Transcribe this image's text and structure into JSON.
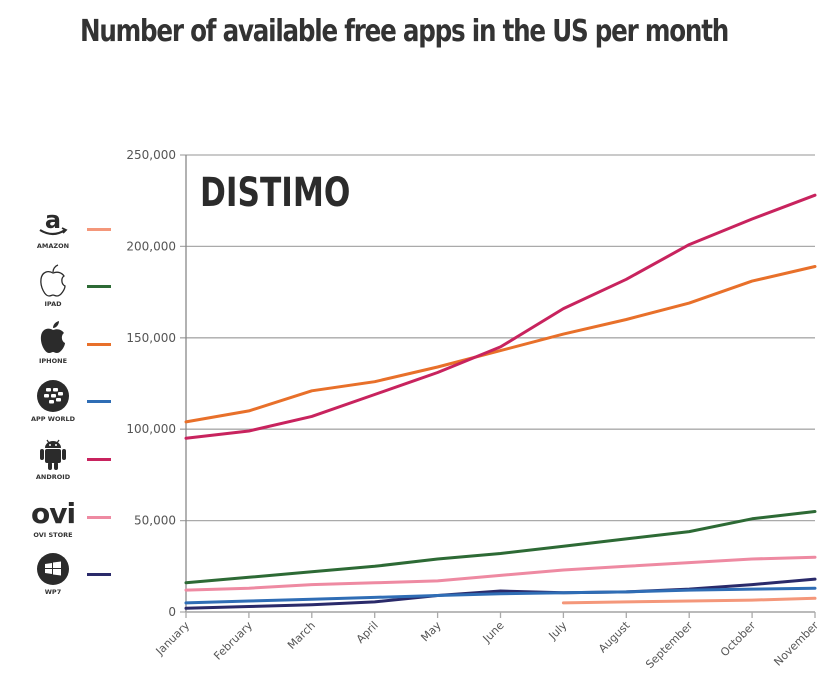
{
  "chart_data": {
    "type": "line",
    "title": "Number of available free apps in the US per month",
    "watermark": "DISTIMO",
    "xlabel": "",
    "ylabel": "",
    "ylim": [
      0,
      250000
    ],
    "yticks": [
      0,
      50000,
      100000,
      150000,
      200000,
      250000
    ],
    "ytick_labels": [
      "0",
      "50,000",
      "100,000",
      "150,000",
      "200,000",
      "250,000"
    ],
    "grid": true,
    "legend_position": "left",
    "categories": [
      "January",
      "February",
      "March",
      "April",
      "May",
      "June",
      "July",
      "August",
      "September",
      "October",
      "November"
    ],
    "series": [
      {
        "name": "AMAZON",
        "icon": "amazon-icon",
        "color": "#f4977a",
        "values": [
          null,
          null,
          null,
          null,
          null,
          null,
          5000,
          5500,
          6000,
          6500,
          7500
        ]
      },
      {
        "name": "IPAD",
        "icon": "apple-outline-icon",
        "color": "#2d6a35",
        "values": [
          16000,
          19000,
          22000,
          25000,
          29000,
          32000,
          36000,
          40000,
          44000,
          51000,
          55000
        ]
      },
      {
        "name": "IPHONE",
        "icon": "apple-icon",
        "color": "#e8702a",
        "values": [
          104000,
          110000,
          121000,
          126000,
          134000,
          143000,
          152000,
          160000,
          169000,
          181000,
          189000
        ]
      },
      {
        "name": "APP WORLD",
        "icon": "blackberry-icon",
        "color": "#2f6db5",
        "values": [
          5000,
          6000,
          7000,
          8000,
          9000,
          10000,
          10500,
          11000,
          12000,
          12500,
          13000
        ]
      },
      {
        "name": "ANDROID",
        "icon": "android-icon",
        "color": "#c8235e",
        "values": [
          95000,
          99000,
          107000,
          119000,
          131000,
          145000,
          166000,
          182000,
          201000,
          215000,
          228000
        ]
      },
      {
        "name": "OVI STORE",
        "icon": "ovi-icon",
        "color": "#ee8aa2",
        "values": [
          12000,
          13000,
          15000,
          16000,
          17000,
          20000,
          23000,
          25000,
          27000,
          29000,
          30000
        ]
      },
      {
        "name": "WP7",
        "icon": "windows-icon",
        "color": "#2a2a6a",
        "values": [
          2000,
          3000,
          4000,
          5500,
          9000,
          11500,
          10500,
          11000,
          12500,
          15000,
          18000
        ]
      }
    ]
  }
}
